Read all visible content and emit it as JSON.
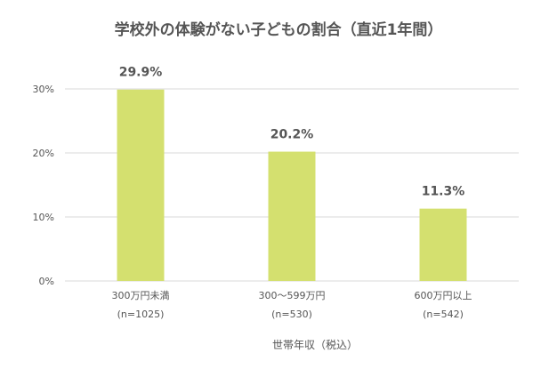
{
  "chart_data": {
    "type": "bar",
    "title": "学校外の体験がない子どもの割合（直近1年間）",
    "categories": [
      "300万円未満",
      "300〜599万円",
      "600万円以上"
    ],
    "category_sublabels": [
      "(n=1025)",
      "(n=530)",
      "(n=542)"
    ],
    "values": [
      29.9,
      20.2,
      11.3
    ],
    "value_labels": [
      "29.9%",
      "20.2%",
      "11.3%"
    ],
    "xlabel": "世帯年収（税込）",
    "ylabel": "",
    "ylim": [
      0,
      30
    ],
    "yticks": [
      0,
      10,
      20,
      30
    ],
    "ytick_labels": [
      "0%",
      "10%",
      "20%",
      "30%"
    ],
    "grid": true,
    "legend": "none",
    "bar_color": "#d4e06f",
    "grid_color": "#d9d9d9",
    "text_color": "#555555"
  }
}
